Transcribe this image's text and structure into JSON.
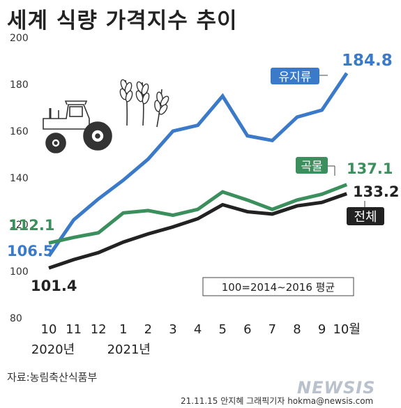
{
  "title": "세계 식량 가격지수 추이",
  "note": "100=2014∼2016 평균",
  "source": "자료:농림축산식품부",
  "credit": "21.11.15 안지혜 그래픽기자 hokma@newsis.com",
  "logo": "NEWSIS",
  "chart_data": {
    "type": "line",
    "title": "세계 식량 가격지수 추이",
    "x": [
      "10",
      "11",
      "12",
      "1",
      "2",
      "3",
      "4",
      "5",
      "6",
      "7",
      "8",
      "9",
      "10월"
    ],
    "year_labels": [
      {
        "label": "2020년",
        "at": "10"
      },
      {
        "label": "2021년",
        "at": "1"
      }
    ],
    "ylim": [
      80,
      200
    ],
    "yticks": [
      80,
      100,
      120,
      140,
      160,
      180,
      200
    ],
    "grid": false,
    "series": [
      {
        "name": "유지류",
        "color": "#3a7ac8",
        "values": [
          106.5,
          122,
          131,
          139,
          148,
          160,
          162.5,
          175,
          158,
          156,
          166,
          169,
          184.8
        ]
      },
      {
        "name": "곡물",
        "color": "#3a8f5c",
        "values": [
          112.1,
          114.5,
          116.5,
          125,
          126,
          124,
          126.5,
          134,
          130.5,
          126.5,
          130.5,
          133,
          137.1
        ]
      },
      {
        "name": "전체",
        "color": "#222222",
        "values": [
          101.4,
          105,
          108,
          112.5,
          116,
          119,
          122.5,
          128.5,
          125.5,
          124.5,
          128,
          129.5,
          133.2
        ]
      }
    ],
    "annotations": [
      {
        "series": "유지류",
        "start": "106.5",
        "end": "184.8"
      },
      {
        "series": "곡물",
        "start": "112.1",
        "end": "137.1"
      },
      {
        "series": "전체",
        "start": "101.4",
        "end": "133.2"
      }
    ]
  }
}
